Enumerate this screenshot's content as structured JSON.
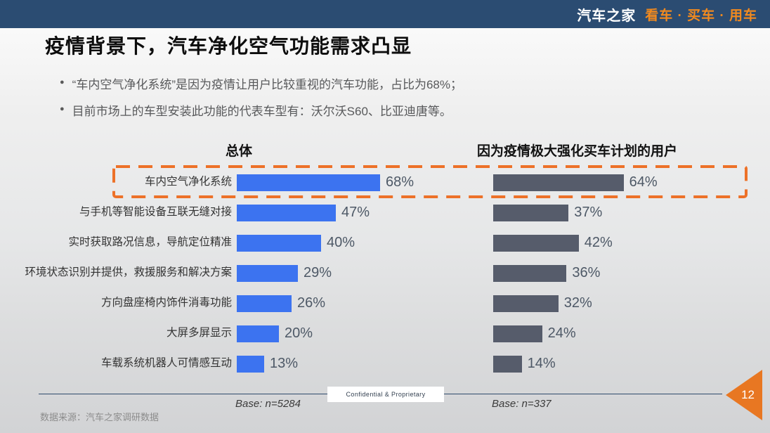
{
  "topbar": {
    "brand": "汽车之家",
    "tagline": "看车 · 买车 · 用车",
    "bar_color": "#2B4C72",
    "tagline_color": "#F28A1E"
  },
  "title": "疫情背景下，汽车净化空气功能需求凸显",
  "bullets": [
    "“车内空气净化系统”是因为疫情让用户比较重视的汽车功能，占比为68%；",
    "目前市场上的车型安装此功能的代表车型有：沃尔沃S60、比亚迪唐等。"
  ],
  "chart_data": {
    "type": "bar",
    "orientation": "horizontal",
    "value_suffix": "%",
    "categories": [
      "车内空气净化系统",
      "与手机等智能设备互联无缝对接",
      "实时获取路况信息，导航定位精准",
      "环境状态识别并提供，救援服务和解决方案",
      "方向盘座椅内饰件消毒功能",
      "大屏多屏显示",
      "车载系统机器人可情感互动"
    ],
    "series": [
      {
        "name": "总体",
        "color": "#3C73F0",
        "values": [
          68,
          47,
          40,
          29,
          26,
          20,
          13
        ]
      },
      {
        "name": "因为疫情极大强化买车计划的用户",
        "color": "#565C6B",
        "values": [
          64,
          37,
          42,
          36,
          32,
          24,
          14
        ]
      }
    ],
    "highlight_row": 0,
    "highlight_color": "#ED7128",
    "legend_position": "top",
    "grid": false
  },
  "footer": {
    "confidential": "Confidential & Proprietary",
    "base_left": "Base:  n=5284",
    "base_right": "Base:  n=337",
    "source": "数据来源：汽车之家调研数据",
    "page_number": "12"
  }
}
